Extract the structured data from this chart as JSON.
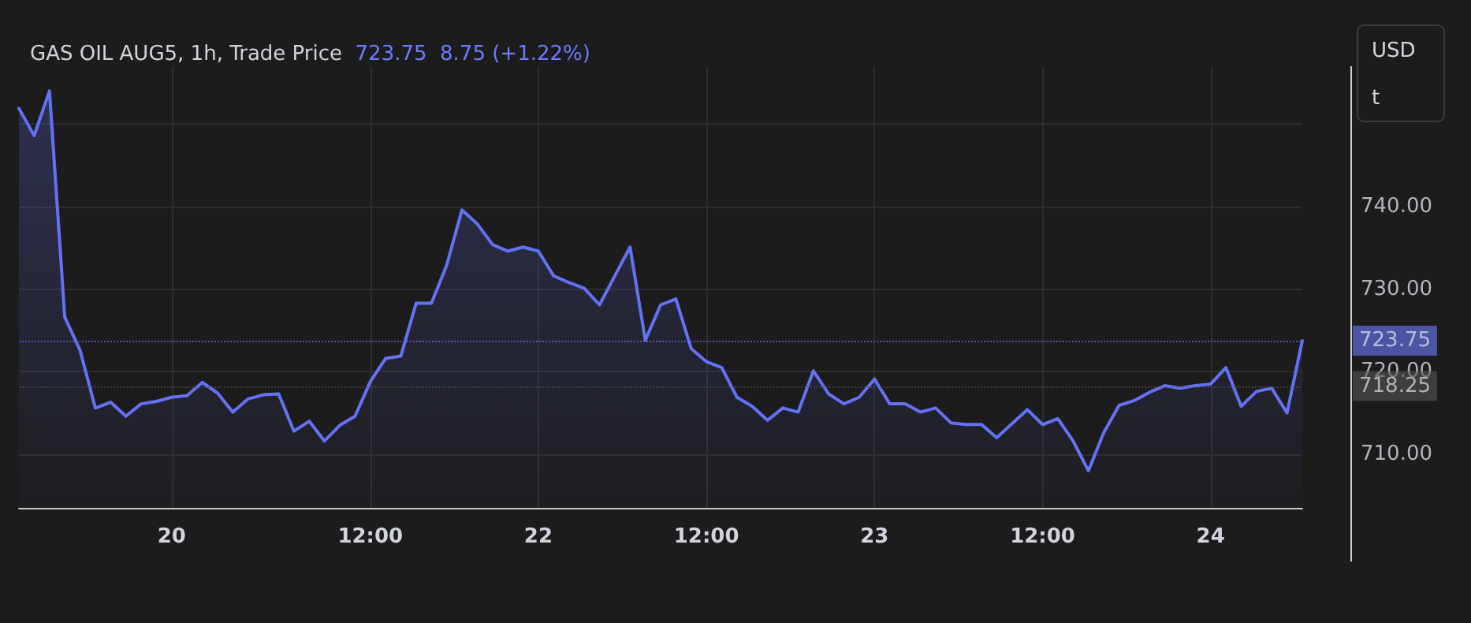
{
  "chart_data": {
    "type": "area",
    "title": "GAS OIL AUG5, 1h, Trade Price",
    "subtitle": "723.75  8.75 (+1.22%)",
    "categories": [
      null,
      null,
      null,
      null,
      null,
      null,
      null,
      null,
      null,
      null,
      "20",
      null,
      null,
      null,
      null,
      null,
      null,
      null,
      null,
      null,
      null,
      null,
      null,
      "12:00",
      null,
      null,
      null,
      null,
      null,
      null,
      null,
      null,
      null,
      null,
      "22",
      null,
      null,
      null,
      null,
      null,
      null,
      null,
      null,
      null,
      null,
      "12:00",
      null,
      null,
      null,
      null,
      null,
      null,
      null,
      null,
      null,
      null,
      "23",
      null,
      null,
      null,
      null,
      null,
      null,
      null,
      null,
      null,
      null,
      "12:00",
      null,
      null,
      null,
      null,
      null,
      null,
      null,
      null,
      null,
      null,
      "24",
      null,
      null,
      null,
      null,
      null,
      null
    ],
    "series": [
      {
        "color": "#6272f5",
        "values": [
          751.9,
          748.6,
          754.0,
          726.6,
          722.6,
          715.6,
          716.3,
          714.6,
          716.1,
          716.4,
          716.9,
          717.1,
          718.7,
          717.4,
          715.1,
          716.7,
          717.2,
          717.3,
          712.8,
          714.0,
          711.6,
          713.5,
          714.6,
          718.8,
          721.6,
          721.9,
          728.3,
          728.3,
          732.9,
          739.6,
          737.9,
          735.4,
          734.6,
          735.1,
          734.6,
          731.6,
          730.8,
          730.1,
          728.1,
          731.6,
          735.1,
          723.8,
          728.1,
          728.8,
          722.8,
          721.2,
          720.5,
          716.9,
          715.8,
          714.1,
          715.6,
          715.1,
          720.1,
          717.3,
          716.1,
          716.9,
          719.1,
          716.1,
          716.1,
          715.1,
          715.6,
          713.8,
          713.6,
          713.6,
          712.0,
          713.7,
          715.4,
          713.6,
          714.3,
          711.6,
          708.0,
          712.6,
          715.9,
          716.5,
          717.5,
          718.3,
          718.0,
          718.3,
          718.5,
          720.5,
          715.8,
          717.6,
          718.0,
          715.0,
          723.75
        ]
      }
    ],
    "ylim": [
      703.5,
      757
    ],
    "yticks": [
      {
        "value": 710,
        "label": "710.00"
      },
      {
        "value": 720,
        "label": "720.00"
      },
      {
        "value": 730,
        "label": "730.00"
      },
      {
        "value": 740,
        "label": "740.00"
      },
      {
        "value": 750,
        "label": null
      }
    ],
    "grid": true,
    "marker": "none",
    "line_style": "solid",
    "ref_lines": [
      {
        "axis": "y",
        "value": 723.75,
        "label": "723.75",
        "color": "#6b7cff",
        "line_style": "dotted"
      },
      {
        "axis": "y",
        "value": 718.25,
        "label": "718.25",
        "color": "#555555",
        "line_style": "dotted"
      }
    ],
    "annotations": [
      "USD",
      "t"
    ]
  }
}
